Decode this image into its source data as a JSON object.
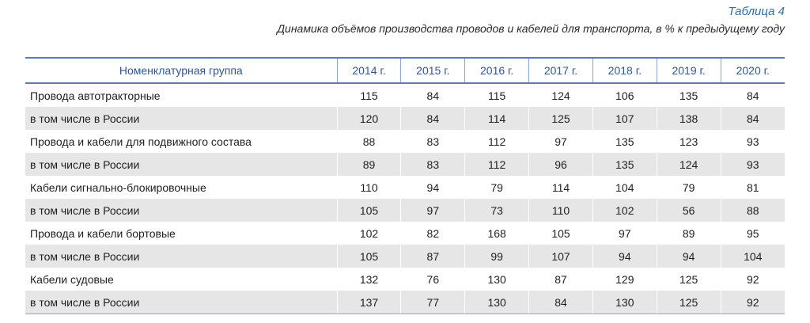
{
  "caption": {
    "number": "Таблица 4",
    "title": "Динамика объёмов производства проводов и кабелей для транспорта, в % к предыдущему году"
  },
  "table": {
    "headers": [
      "Номенклатурная группа",
      "2014 г.",
      "2015 г.",
      "2016 г.",
      "2017 г.",
      "2018 г.",
      "2019 г.",
      "2020 г."
    ],
    "rows": [
      {
        "name": "Провода автотракторные",
        "values": [
          "115",
          "84",
          "115",
          "124",
          "106",
          "135",
          "84"
        ]
      },
      {
        "name": "в том числе в России",
        "values": [
          "120",
          "84",
          "114",
          "125",
          "107",
          "138",
          "84"
        ]
      },
      {
        "name": "Провода и кабели для подвижного состава",
        "values": [
          "88",
          "83",
          "112",
          "97",
          "135",
          "123",
          "93"
        ]
      },
      {
        "name": "в том числе в России",
        "values": [
          "89",
          "83",
          "112",
          "96",
          "135",
          "124",
          "93"
        ]
      },
      {
        "name": "Кабели сигнально-блокировочные",
        "values": [
          "110",
          "94",
          "79",
          "114",
          "104",
          "79",
          "81"
        ]
      },
      {
        "name": "в том числе в России",
        "values": [
          "105",
          "97",
          "73",
          "110",
          "102",
          "56",
          "88"
        ]
      },
      {
        "name": "Провода и кабели бортовые",
        "values": [
          "102",
          "82",
          "168",
          "105",
          "97",
          "89",
          "95"
        ]
      },
      {
        "name": "в том числе в России",
        "values": [
          "105",
          "87",
          "99",
          "107",
          "94",
          "94",
          "104"
        ]
      },
      {
        "name": "Кабели судовые",
        "values": [
          "132",
          "76",
          "130",
          "87",
          "129",
          "125",
          "92"
        ]
      },
      {
        "name": "в том числе в России",
        "values": [
          "137",
          "77",
          "130",
          "84",
          "130",
          "125",
          "92"
        ]
      }
    ]
  },
  "colors": {
    "header_text": "#2f5597",
    "caption_number": "#2f6da8",
    "stripe": "#e6e6e6",
    "rule": "#5b7bb5"
  }
}
